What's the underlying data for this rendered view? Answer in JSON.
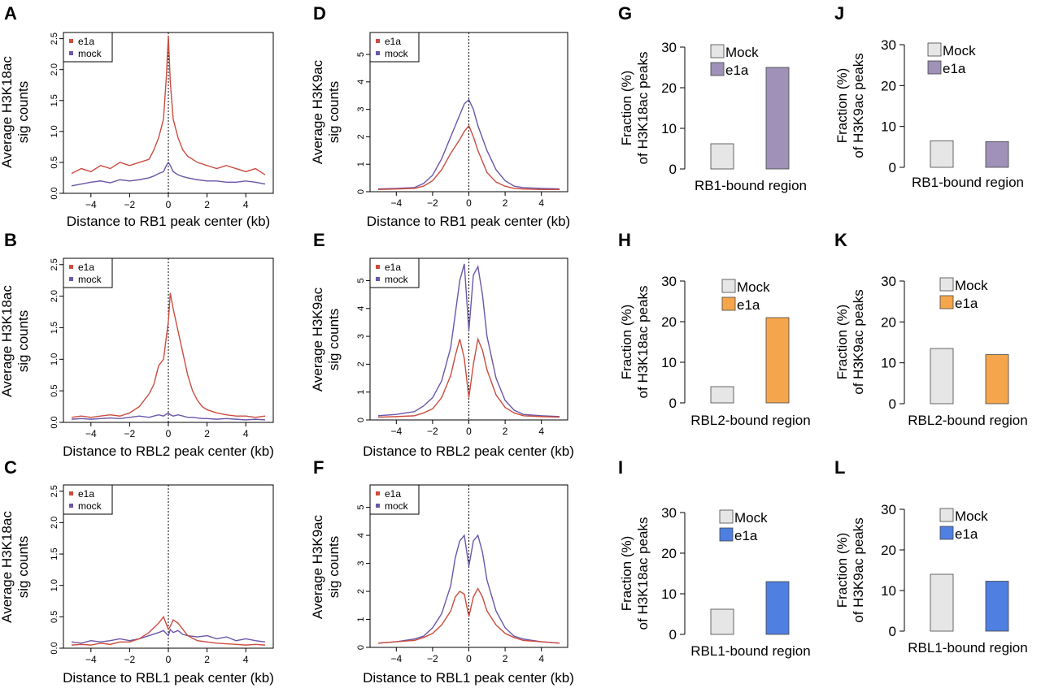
{
  "chart_data": [
    {
      "panel": "A",
      "type": "line",
      "ylabel": [
        "Average H3K18ac",
        "sig counts"
      ],
      "xlabel": "Distance to RB1 peak center (kb)",
      "xlim": [
        -5,
        5
      ],
      "ylim": [
        0,
        2.6
      ],
      "xticks": [
        -4,
        -2,
        0,
        2,
        4
      ],
      "xtick_labels": [
        "−4",
        "−2",
        "0",
        "2",
        "4"
      ],
      "yticks": [
        0,
        0.5,
        1,
        1.5,
        2,
        2.5
      ],
      "ytick_labels": [
        "0.0",
        "0.5",
        "1.0",
        "1.5",
        "2.0",
        "2.5"
      ],
      "legend": "top-left",
      "center_line": true,
      "x": [
        -5,
        -4.5,
        -4,
        -3.5,
        -3,
        -2.5,
        -2,
        -1.5,
        -1,
        -0.75,
        -0.5,
        -0.25,
        -0.1,
        0,
        0.1,
        0.25,
        0.5,
        0.75,
        1,
        1.5,
        2,
        2.5,
        3,
        3.5,
        4,
        4.5,
        5
      ],
      "series": [
        {
          "name": "e1a",
          "color": "#cc4c3f",
          "values": [
            0.32,
            0.4,
            0.35,
            0.45,
            0.4,
            0.5,
            0.45,
            0.5,
            0.55,
            0.7,
            0.9,
            1.2,
            1.9,
            2.55,
            1.8,
            1.2,
            0.9,
            0.7,
            0.6,
            0.5,
            0.45,
            0.4,
            0.45,
            0.4,
            0.35,
            0.4,
            0.3
          ]
        },
        {
          "name": "mock",
          "color": "#6b56a8",
          "values": [
            0.12,
            0.15,
            0.18,
            0.2,
            0.17,
            0.22,
            0.2,
            0.22,
            0.25,
            0.28,
            0.32,
            0.35,
            0.45,
            0.5,
            0.45,
            0.35,
            0.3,
            0.27,
            0.25,
            0.22,
            0.2,
            0.2,
            0.18,
            0.18,
            0.2,
            0.18,
            0.15
          ]
        }
      ]
    },
    {
      "panel": "B",
      "type": "line",
      "ylabel": [
        "Average H3K18ac",
        "sig counts"
      ],
      "xlabel": "Distance to RBL2 peak center (kb)",
      "xlim": [
        -5,
        5
      ],
      "ylim": [
        0,
        2.6
      ],
      "xticks": [
        -4,
        -2,
        0,
        2,
        4
      ],
      "xtick_labels": [
        "−4",
        "−2",
        "0",
        "2",
        "4"
      ],
      "yticks": [
        0,
        0.5,
        1,
        1.5,
        2,
        2.5
      ],
      "ytick_labels": [
        "0.0",
        "0.5",
        "1.0",
        "1.5",
        "2.0",
        "2.5"
      ],
      "legend": "top-left",
      "center_line": true,
      "x": [
        -5,
        -4.5,
        -4,
        -3.5,
        -3,
        -2.5,
        -2,
        -1.5,
        -1,
        -0.75,
        -0.5,
        -0.25,
        0,
        0.1,
        0.25,
        0.5,
        0.75,
        1,
        1.25,
        1.5,
        1.75,
        2,
        2.5,
        3,
        3.5,
        4,
        4.5,
        5
      ],
      "series": [
        {
          "name": "e1a",
          "color": "#cc4c3f",
          "values": [
            0.08,
            0.1,
            0.08,
            0.1,
            0.12,
            0.1,
            0.15,
            0.25,
            0.45,
            0.6,
            0.9,
            1.0,
            1.6,
            2.05,
            1.8,
            1.45,
            1.1,
            0.75,
            0.5,
            0.35,
            0.25,
            0.2,
            0.15,
            0.12,
            0.1,
            0.1,
            0.08,
            0.1
          ]
        },
        {
          "name": "mock",
          "color": "#6b56a8",
          "values": [
            0.05,
            0.06,
            0.05,
            0.06,
            0.07,
            0.06,
            0.08,
            0.1,
            0.08,
            0.1,
            0.12,
            0.1,
            0.15,
            0.12,
            0.1,
            0.12,
            0.1,
            0.08,
            0.08,
            0.07,
            0.06,
            0.06,
            0.05,
            0.06,
            0.05,
            0.04,
            0.05,
            0.04
          ]
        }
      ]
    },
    {
      "panel": "C",
      "type": "line",
      "ylabel": [
        "Average H3K18ac",
        "sig counts"
      ],
      "xlabel": "Distance to RBL1 peak center (kb)",
      "xlim": [
        -5,
        5
      ],
      "ylim": [
        0,
        2.6
      ],
      "xticks": [
        -4,
        -2,
        0,
        2,
        4
      ],
      "xtick_labels": [
        "−4",
        "−2",
        "0",
        "2",
        "4"
      ],
      "yticks": [
        0,
        0.5,
        1,
        1.5,
        2,
        2.5
      ],
      "ytick_labels": [
        "0.0",
        "0.5",
        "1.0",
        "1.5",
        "2.0",
        "2.5"
      ],
      "legend": "top-left",
      "center_line": true,
      "x": [
        -5,
        -4.5,
        -4,
        -3.5,
        -3,
        -2.5,
        -2,
        -1.5,
        -1,
        -0.5,
        -0.25,
        0,
        0.1,
        0.25,
        0.5,
        0.75,
        1,
        1.5,
        2,
        2.5,
        3,
        3.5,
        4,
        4.5,
        5
      ],
      "series": [
        {
          "name": "e1a",
          "color": "#cc4c3f",
          "values": [
            0.05,
            0.06,
            0.05,
            0.08,
            0.06,
            0.1,
            0.1,
            0.15,
            0.25,
            0.4,
            0.5,
            0.3,
            0.35,
            0.45,
            0.4,
            0.3,
            0.2,
            0.12,
            0.1,
            0.08,
            0.07,
            0.06,
            0.05,
            0.06,
            0.05
          ]
        },
        {
          "name": "mock",
          "color": "#6b56a8",
          "values": [
            0.1,
            0.08,
            0.12,
            0.1,
            0.12,
            0.15,
            0.12,
            0.15,
            0.2,
            0.25,
            0.28,
            0.2,
            0.3,
            0.25,
            0.28,
            0.22,
            0.2,
            0.18,
            0.2,
            0.15,
            0.18,
            0.12,
            0.15,
            0.12,
            0.1
          ]
        }
      ]
    },
    {
      "panel": "D",
      "type": "line",
      "ylabel": [
        "Average H3K9ac",
        "sig counts"
      ],
      "xlabel": "Distance to RB1 peak center (kb)",
      "xlim": [
        -5,
        5
      ],
      "ylim": [
        0,
        5.8
      ],
      "xticks": [
        -4,
        -2,
        0,
        2,
        4
      ],
      "xtick_labels": [
        "−4",
        "−2",
        "0",
        "2",
        "4"
      ],
      "yticks": [
        0,
        1,
        2,
        3,
        4,
        5
      ],
      "ytick_labels": [
        "0",
        "1",
        "2",
        "3",
        "4",
        "5"
      ],
      "legend": "top-left",
      "center_line": true,
      "x": [
        -5,
        -4,
        -3,
        -2.5,
        -2,
        -1.5,
        -1,
        -0.5,
        -0.25,
        0,
        0.25,
        0.5,
        1,
        1.5,
        2,
        2.5,
        3,
        4,
        5
      ],
      "series": [
        {
          "name": "e1a",
          "color": "#cc4c3f",
          "values": [
            0.08,
            0.1,
            0.12,
            0.2,
            0.4,
            0.8,
            1.4,
            1.9,
            2.2,
            2.4,
            2.0,
            1.5,
            0.7,
            0.35,
            0.2,
            0.12,
            0.1,
            0.08,
            0.08
          ]
        },
        {
          "name": "mock",
          "color": "#6b56a8",
          "values": [
            0.1,
            0.12,
            0.15,
            0.3,
            0.6,
            1.2,
            2.0,
            2.8,
            3.2,
            3.35,
            3.0,
            2.4,
            1.5,
            0.8,
            0.4,
            0.2,
            0.15,
            0.12,
            0.1
          ]
        }
      ]
    },
    {
      "panel": "E",
      "type": "line",
      "ylabel": [
        "Average H3K9ac",
        "sig counts"
      ],
      "xlabel": "Distance to RBL2 peak center (kb)",
      "xlim": [
        -5,
        5
      ],
      "ylim": [
        0,
        5.8
      ],
      "xticks": [
        -4,
        -2,
        0,
        2,
        4
      ],
      "xtick_labels": [
        "−4",
        "−2",
        "0",
        "2",
        "4"
      ],
      "yticks": [
        0,
        1,
        2,
        3,
        4,
        5
      ],
      "ytick_labels": [
        "0",
        "1",
        "2",
        "3",
        "4",
        "5"
      ],
      "legend": "top-left",
      "center_line": true,
      "x": [
        -5,
        -4,
        -3,
        -2.5,
        -2,
        -1.5,
        -1,
        -0.75,
        -0.5,
        -0.25,
        0,
        0.25,
        0.5,
        0.75,
        1,
        1.5,
        2,
        2.5,
        3,
        4,
        5
      ],
      "series": [
        {
          "name": "e1a",
          "color": "#cc4c3f",
          "values": [
            0.1,
            0.12,
            0.15,
            0.25,
            0.4,
            0.8,
            1.6,
            2.3,
            2.9,
            2.2,
            0.8,
            2.0,
            2.9,
            2.5,
            1.8,
            0.9,
            0.45,
            0.25,
            0.15,
            0.12,
            0.1
          ]
        },
        {
          "name": "mock",
          "color": "#6b56a8",
          "values": [
            0.15,
            0.2,
            0.3,
            0.5,
            0.8,
            1.4,
            2.6,
            3.8,
            5.0,
            5.6,
            3.2,
            5.2,
            5.5,
            4.5,
            3.0,
            1.5,
            0.7,
            0.35,
            0.2,
            0.15,
            0.12
          ]
        }
      ]
    },
    {
      "panel": "F",
      "type": "line",
      "ylabel": [
        "Average H3K9ac",
        "sig counts"
      ],
      "xlabel": "Distance to RBL1 peak center (kb)",
      "xlim": [
        -5,
        5
      ],
      "ylim": [
        0,
        5.8
      ],
      "xticks": [
        -4,
        -2,
        0,
        2,
        4
      ],
      "xtick_labels": [
        "−4",
        "−2",
        "0",
        "2",
        "4"
      ],
      "yticks": [
        0,
        1,
        2,
        3,
        4,
        5
      ],
      "ytick_labels": [
        "0",
        "1",
        "2",
        "3",
        "4",
        "5"
      ],
      "legend": "top-left",
      "center_line": true,
      "x": [
        -5,
        -4,
        -3,
        -2.5,
        -2,
        -1.5,
        -1,
        -0.75,
        -0.5,
        -0.25,
        0,
        0.25,
        0.5,
        0.75,
        1,
        1.5,
        2,
        2.5,
        3,
        4,
        5
      ],
      "series": [
        {
          "name": "e1a",
          "color": "#cc4c3f",
          "values": [
            0.15,
            0.2,
            0.25,
            0.35,
            0.5,
            0.8,
            1.3,
            1.8,
            2.0,
            1.9,
            1.1,
            1.8,
            2.1,
            1.8,
            1.3,
            0.8,
            0.5,
            0.35,
            0.25,
            0.2,
            0.15
          ]
        },
        {
          "name": "mock",
          "color": "#6b56a8",
          "values": [
            0.15,
            0.2,
            0.3,
            0.4,
            0.7,
            1.2,
            2.2,
            3.2,
            3.8,
            4.0,
            2.9,
            3.8,
            4.0,
            3.4,
            2.4,
            1.3,
            0.7,
            0.4,
            0.3,
            0.2,
            0.15
          ]
        }
      ]
    },
    {
      "panel": "G",
      "type": "bar",
      "ylabel": [
        "Fraction (%)",
        "of H3K18ac peaks"
      ],
      "xlabel": "RB1-bound region",
      "ylim": [
        0,
        30
      ],
      "yticks": [
        0,
        10,
        20,
        30
      ],
      "legend": "top-left",
      "categories": [
        "Mock",
        "e1a"
      ],
      "values": [
        6.2,
        25
      ],
      "colors": [
        "#e6e6e6",
        "#9f91b8"
      ]
    },
    {
      "panel": "H",
      "type": "bar",
      "ylabel": [
        "Fraction (%)",
        "of H3K18ac peaks"
      ],
      "xlabel": "RBL2-bound region",
      "ylim": [
        0,
        30
      ],
      "yticks": [
        0,
        10,
        20,
        30
      ],
      "legend": "top-center",
      "categories": [
        "Mock",
        "e1a"
      ],
      "values": [
        4,
        21
      ],
      "colors": [
        "#e6e6e6",
        "#f5a64d"
      ]
    },
    {
      "panel": "I",
      "type": "bar",
      "ylabel": [
        "Fraction (%)",
        "of H3K18ac peaks"
      ],
      "xlabel": "RBL1-bound region",
      "ylim": [
        0,
        30
      ],
      "yticks": [
        0,
        10,
        20,
        30
      ],
      "legend": "top-center",
      "categories": [
        "Mock",
        "e1a"
      ],
      "values": [
        6.2,
        13
      ],
      "colors": [
        "#e6e6e6",
        "#4f7fe0"
      ]
    },
    {
      "panel": "J",
      "type": "bar",
      "ylabel": [
        "Fraction (%)",
        "of H3K9ac peaks"
      ],
      "xlabel": "RB1-bound region",
      "ylim": [
        0,
        30
      ],
      "yticks": [
        0,
        10,
        20,
        30
      ],
      "legend": "top-left",
      "categories": [
        "Mock",
        "e1a"
      ],
      "values": [
        6.5,
        6.3
      ],
      "colors": [
        "#e6e6e6",
        "#9f91b8"
      ]
    },
    {
      "panel": "K",
      "type": "bar",
      "ylabel": [
        "Fraction (%)",
        "of H3K9ac peaks"
      ],
      "xlabel": "RBL2-bound region",
      "ylim": [
        0,
        30
      ],
      "yticks": [
        0,
        10,
        20,
        30
      ],
      "legend": "top-center",
      "categories": [
        "Mock",
        "e1a"
      ],
      "values": [
        13.5,
        12
      ],
      "colors": [
        "#e6e6e6",
        "#f5a64d"
      ]
    },
    {
      "panel": "L",
      "type": "bar",
      "ylabel": [
        "Fraction (%)",
        "of H3K9ac peaks"
      ],
      "xlabel": "RBL1-bound region",
      "ylim": [
        0,
        30
      ],
      "yticks": [
        0,
        10,
        20,
        30
      ],
      "legend": "top-center",
      "categories": [
        "Mock",
        "e1a"
      ],
      "values": [
        14,
        12.3
      ],
      "colors": [
        "#e6e6e6",
        "#4f7fe0"
      ]
    }
  ]
}
